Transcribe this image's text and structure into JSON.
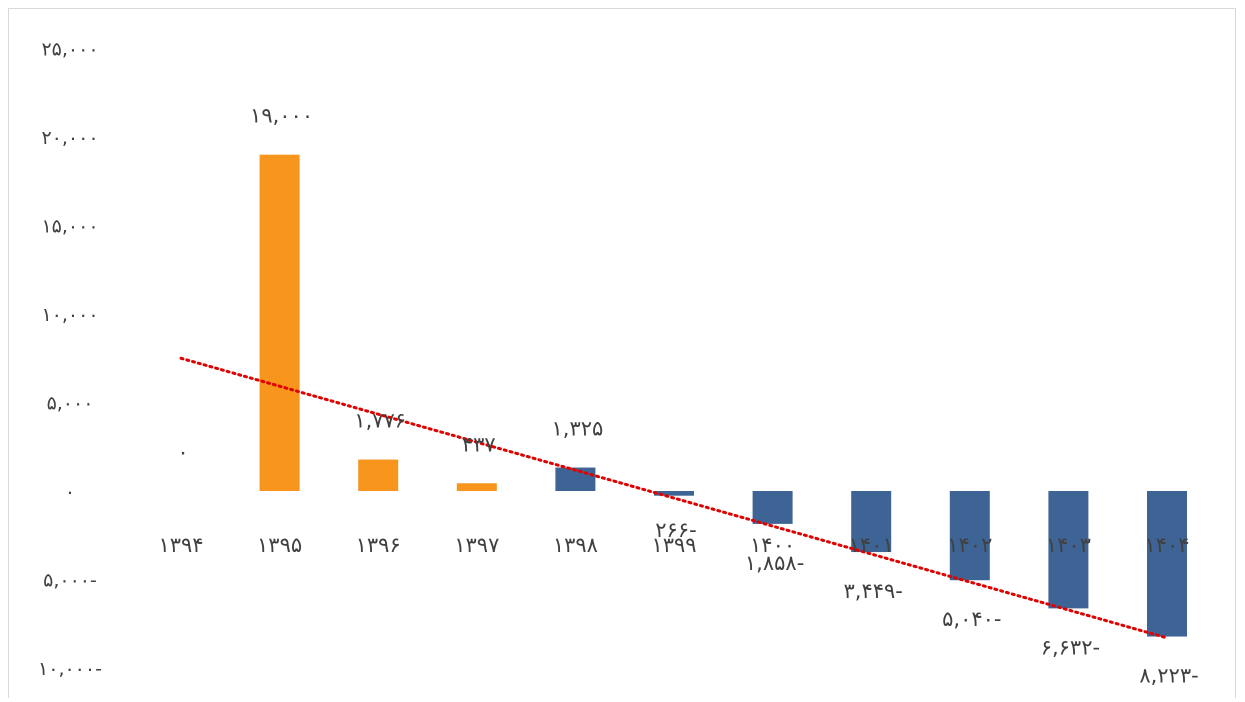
{
  "chart_data": {
    "type": "bar",
    "title": "",
    "xlabel": "",
    "ylabel": "",
    "categories": [
      "۱۳۹۴",
      "۱۳۹۵",
      "۱۳۹۶",
      "۱۳۹۷",
      "۱۳۹۸",
      "۱۳۹۹",
      "۱۴۰۰",
      "۱۴۰۱",
      "۱۴۰۲",
      "۱۴۰۳",
      "۱۴۰۴"
    ],
    "values": [
      0,
      19000,
      1776,
      437,
      1325,
      -266,
      -1858,
      -3449,
      -5040,
      -6632,
      -8223
    ],
    "data_labels": [
      "۰",
      "۱۹,۰۰۰",
      "۱,۷۷۶",
      "۴۳۷",
      "۱,۳۲۵",
      "۲۶۶-",
      "۱,۸۵۸-",
      "۳,۴۴۹-",
      "۵,۰۴۰-",
      "۶,۶۳۲-",
      "۸,۲۲۳-"
    ],
    "bar_colors": [
      "#F7951D",
      "#F7951D",
      "#F7951D",
      "#F7951D",
      "#3E6496",
      "#3E6496",
      "#3E6496",
      "#3E6496",
      "#3E6496",
      "#3E6496",
      "#3E6496"
    ],
    "ylim": [
      -10000,
      25000
    ],
    "yticks": [
      25000,
      20000,
      15000,
      10000,
      5000,
      0,
      -5000,
      -10000
    ],
    "ytick_labels": [
      "۲۵,۰۰۰",
      "۲۰,۰۰۰",
      "۱۵,۰۰۰",
      "۱۰,۰۰۰",
      "۵,۰۰۰",
      "۰",
      "۵,۰۰۰-",
      "۱۰,۰۰۰-"
    ],
    "trendline": {
      "type": "linear",
      "color": "#E00000",
      "style": "dotted",
      "start": 7500,
      "end": -8300
    },
    "grid": false,
    "legend": "none"
  }
}
